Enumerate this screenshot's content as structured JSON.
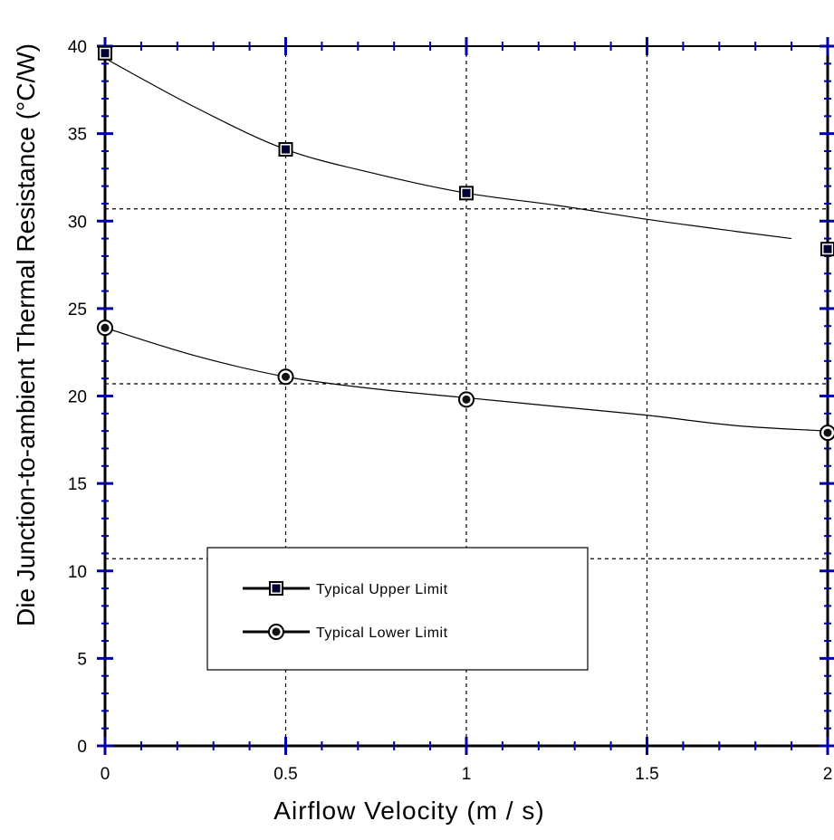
{
  "chart_data": {
    "type": "line",
    "xlabel": "Airflow Velocity  (m / s)",
    "ylabel": "Die Junction-to-ambient Thermal Resistance  (°C/W)",
    "xlim": [
      0,
      2
    ],
    "ylim": [
      0,
      40
    ],
    "x_ticks": [
      "0",
      "0.5",
      "1",
      "1.5",
      "2"
    ],
    "y_ticks": [
      "0",
      "5",
      "10",
      "15",
      "20",
      "25",
      "30",
      "35",
      "40"
    ],
    "grid": true,
    "legend_position": "lower-left",
    "series": [
      {
        "name": "Typical Upper Limit",
        "marker": "square",
        "x": [
          0,
          0.5,
          1,
          2
        ],
        "y": [
          39.6,
          34.1,
          31.6,
          28.4
        ],
        "fit_x": [
          0,
          0.25,
          0.5,
          0.75,
          1,
          1.25,
          1.5,
          1.75,
          1.9
        ],
        "fit_y": [
          39.3,
          36.5,
          34.1,
          32.7,
          31.6,
          30.9,
          30.1,
          29.4,
          29.0
        ]
      },
      {
        "name": "Typical Lower Limit",
        "marker": "circle",
        "x": [
          0,
          0.5,
          1,
          2
        ],
        "y": [
          23.9,
          21.1,
          19.8,
          17.9
        ],
        "fit_x": [
          0,
          0.25,
          0.5,
          0.75,
          1,
          1.25,
          1.5,
          1.75,
          2
        ],
        "fit_y": [
          23.9,
          22.3,
          21.1,
          20.4,
          19.9,
          19.4,
          18.9,
          18.3,
          18.0
        ]
      }
    ],
    "colors": {
      "axis": "#000000",
      "tick": "#0000aa",
      "grid": "#000000",
      "marker_fill": "#000033"
    }
  }
}
